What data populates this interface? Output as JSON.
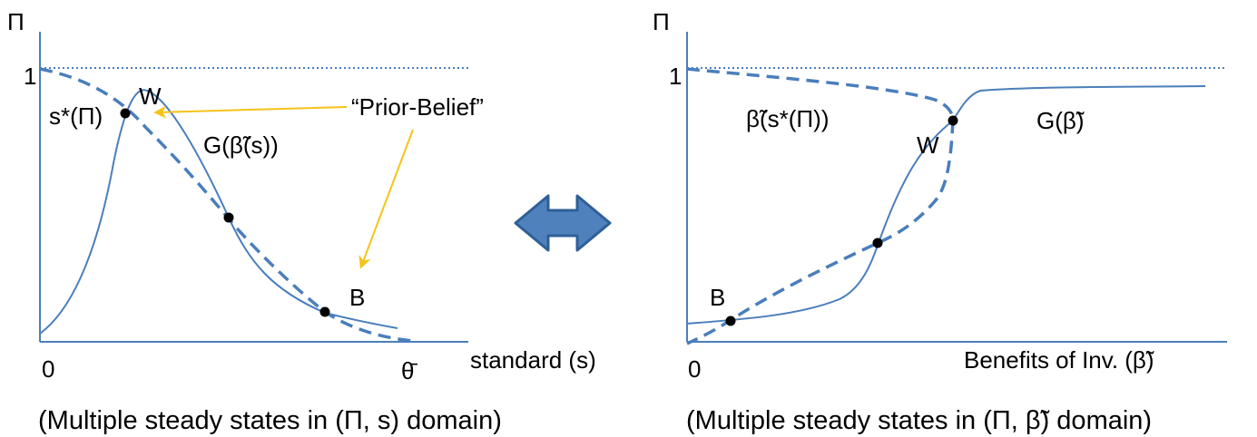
{
  "colors": {
    "curve": "#4a7ebb",
    "axis": "#4a7ebb",
    "arrow": "#f5c318",
    "double_arrow_fill": "#4f81bd",
    "double_arrow_stroke": "#2f5f97",
    "text": "#000000"
  },
  "left_panel": {
    "y_axis_label": "Π",
    "one_label": "1",
    "origin_label": "0",
    "theta_bar_label": "θ̄",
    "x_axis_label": "standard (s)",
    "point_W": "W",
    "point_B": "B",
    "s_star_label": "s*(Π)",
    "g_label": "G(β̃(s))",
    "prior_belief": "“Prior-Belief”",
    "caption": "(Multiple steady states in (Π, s) domain)"
  },
  "right_panel": {
    "y_axis_label": "Π",
    "one_label": "1",
    "origin_label": "0",
    "x_axis_label": "Benefits of Inv. (β̃)",
    "point_W": "W",
    "point_B": "B",
    "beta_label": "β̃(s*(Π))",
    "g_label": "G(β̃)",
    "caption": "(Multiple steady states in (Π, β̃) domain)"
  },
  "middle": {
    "double_arrow_icon": "double-arrow-icon"
  }
}
